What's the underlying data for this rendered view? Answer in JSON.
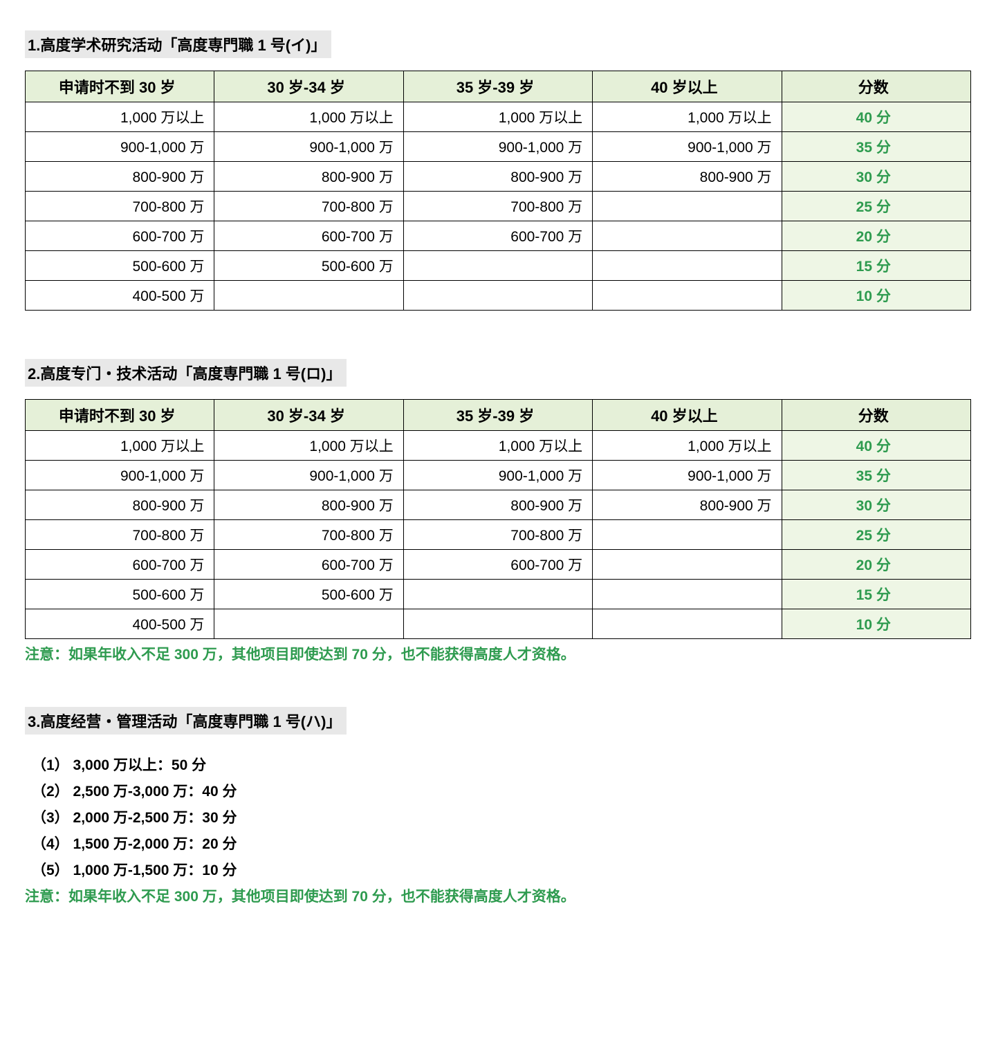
{
  "colors": {
    "header_bg": "#e5f0d8",
    "score_bg": "#eef6e5",
    "score_text": "#2e9b4f",
    "title_bg": "#e8e8e8",
    "border": "#000000",
    "body_text": "#000000",
    "note_text": "#2e9b4f"
  },
  "typography": {
    "base_fontsize_pt": 16,
    "header_fontsize_pt": 17,
    "header_weight": "bold",
    "score_weight": "bold",
    "list_weight": "bold"
  },
  "section1": {
    "title": "1.高度学术研究活动「高度専門職 1 号(イ)」",
    "table": {
      "columns": [
        "申请时不到 30 岁",
        "30 岁-34 岁",
        "35 岁-39 岁",
        "40 岁以上",
        "分数"
      ],
      "column_align": [
        "right",
        "right",
        "right",
        "right",
        "center"
      ],
      "rows": [
        [
          "1,000 万以上",
          "1,000 万以上",
          "1,000 万以上",
          "1,000 万以上",
          "40 分"
        ],
        [
          "900-1,000 万",
          "900-1,000 万",
          "900-1,000 万",
          "900-1,000 万",
          "35 分"
        ],
        [
          "800-900 万",
          "800-900 万",
          "800-900 万",
          "800-900 万",
          "30 分"
        ],
        [
          "700-800 万",
          "700-800 万",
          "700-800 万",
          "",
          "25 分"
        ],
        [
          "600-700 万",
          "600-700 万",
          "600-700 万",
          "",
          "20 分"
        ],
        [
          "500-600 万",
          "500-600 万",
          "",
          "",
          "15 分"
        ],
        [
          "400-500 万",
          "",
          "",
          "",
          "10 分"
        ]
      ]
    }
  },
  "section2": {
    "title": "2.高度专门・技术活动「高度専門職 1 号(ロ)」",
    "table": {
      "columns": [
        "申请时不到 30 岁",
        "30 岁-34 岁",
        "35 岁-39 岁",
        "40 岁以上",
        "分数"
      ],
      "column_align": [
        "right",
        "right",
        "right",
        "right",
        "center"
      ],
      "rows": [
        [
          "1,000 万以上",
          "1,000 万以上",
          "1,000 万以上",
          "1,000 万以上",
          "40 分"
        ],
        [
          "900-1,000 万",
          "900-1,000 万",
          "900-1,000 万",
          "900-1,000 万",
          "35 分"
        ],
        [
          "800-900 万",
          "800-900 万",
          "800-900 万",
          "800-900 万",
          "30 分"
        ],
        [
          "700-800 万",
          "700-800 万",
          "700-800 万",
          "",
          "25 分"
        ],
        [
          "600-700 万",
          "600-700 万",
          "600-700 万",
          "",
          "20 分"
        ],
        [
          "500-600 万",
          "500-600 万",
          "",
          "",
          "15 分"
        ],
        [
          "400-500 万",
          "",
          "",
          "",
          "10 分"
        ]
      ]
    },
    "note": "注意：如果年收入不足 300 万，其他项目即使达到 70 分，也不能获得高度人才资格。"
  },
  "section3": {
    "title": "3.高度经营・管理活动「高度専門職 1 号(ハ)」",
    "list": [
      "（1） 3,000 万以上：50 分",
      "（2） 2,500 万-3,000 万：40 分",
      "（3） 2,000 万-2,500 万：30 分",
      "（4） 1,500 万-2,000 万：20 分",
      "（5） 1,000 万-1,500 万：10 分"
    ],
    "note": "注意：如果年收入不足 300 万，其他项目即使达到 70 分，也不能获得高度人才资格。"
  }
}
